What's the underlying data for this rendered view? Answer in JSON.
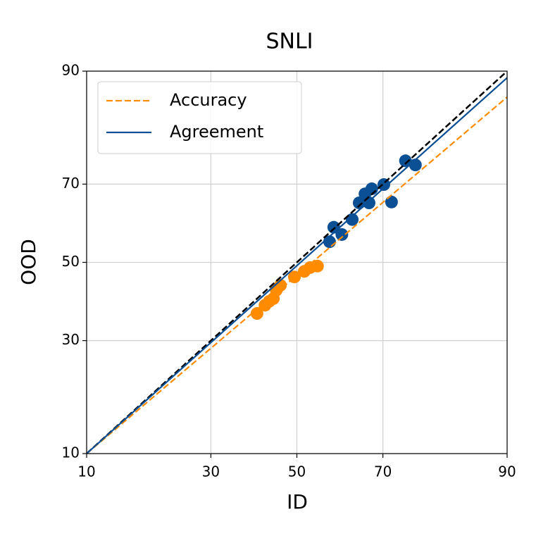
{
  "chart_data": {
    "type": "scatter",
    "title": "SNLI",
    "x_label": "ID",
    "y_label": "OOD",
    "scale": "probit",
    "xlim": [
      10,
      90
    ],
    "ylim": [
      10,
      90
    ],
    "xticks": [
      10,
      30,
      50,
      70,
      90
    ],
    "yticks": [
      10,
      30,
      50,
      70,
      90
    ],
    "grid": true,
    "diagonal": true,
    "legend": "upper left",
    "series": [
      {
        "name": "Accuracy",
        "color": "#ff8c00",
        "dash": true,
        "x": [
          10,
          90
        ],
        "values": [
          10,
          86.6
        ],
        "points": {
          "x": [
            40.4,
            42.3,
            43.3,
            44.3,
            45.0,
            46.0,
            49.4,
            51.8,
            53.2,
            55.0
          ],
          "values": [
            36.6,
            38.7,
            39.7,
            40.4,
            42.6,
            43.9,
            46.1,
            47.6,
            48.6,
            49.0
          ]
        }
      },
      {
        "name": "Agreement",
        "color": "#0b4f95",
        "dash": false,
        "x": [
          10,
          90
        ],
        "values": [
          10,
          89.2
        ],
        "points": {
          "x": [
            57.9,
            58.9,
            60.8,
            63.2,
            64.8,
            66.1,
            67.0,
            67.6,
            70.2,
            71.8,
            74.6,
            76.5
          ],
          "values": [
            55.5,
            59.3,
            57.4,
            61.3,
            65.5,
            67.7,
            65.5,
            68.9,
            69.9,
            65.7,
            75.2,
            74.3
          ]
        }
      }
    ]
  }
}
